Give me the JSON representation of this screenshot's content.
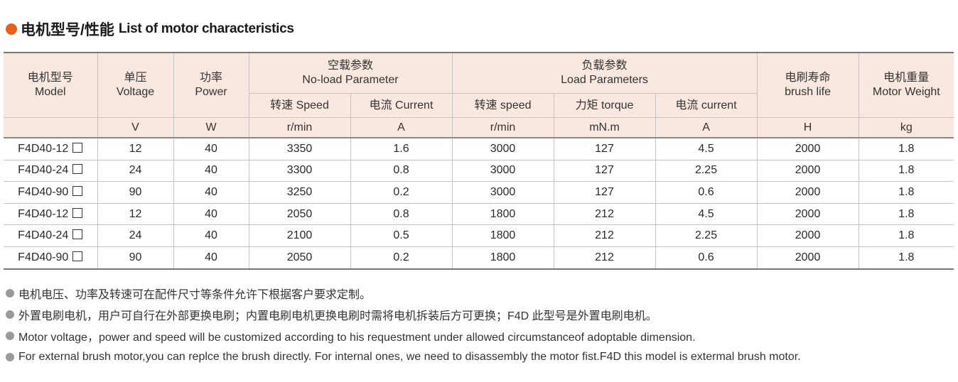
{
  "heading": {
    "cn": "电机型号/性能",
    "en": "List of motor characteristics"
  },
  "colors": {
    "accent": "#e8601c",
    "header_bg": "#f9e8df",
    "bullet": "#9a9a9a"
  },
  "table": {
    "model": [
      "电机型号",
      "Model"
    ],
    "voltage": [
      "单压",
      "Voltage"
    ],
    "power": [
      "功率",
      "Power"
    ],
    "noload": [
      "空载参数",
      "No-load Parameter"
    ],
    "load": [
      "负载参数",
      "Load Parameters"
    ],
    "brush": [
      "电刷寿命",
      "brush life"
    ],
    "weight": [
      "电机重量",
      "Motor Weight"
    ],
    "sub": [
      "转速 Speed",
      "电流 Current",
      "转速 speed",
      "力矩 torque",
      "电流 current"
    ],
    "units": [
      "V",
      "W",
      "r/min",
      "A",
      "r/min",
      "mN.m",
      "A",
      "H",
      "kg"
    ],
    "rows": [
      [
        "F4D40-12",
        "12",
        "40",
        "3350",
        "1.6",
        "3000",
        "127",
        "4.5",
        "2000",
        "1.8"
      ],
      [
        "F4D40-24",
        "24",
        "40",
        "3300",
        "0.8",
        "3000",
        "127",
        "2.25",
        "2000",
        "1.8"
      ],
      [
        "F4D40-90",
        "90",
        "40",
        "3250",
        "0.2",
        "3000",
        "127",
        "0.6",
        "2000",
        "1.8"
      ],
      [
        "F4D40-12",
        "12",
        "40",
        "2050",
        "0.8",
        "1800",
        "212",
        "4.5",
        "2000",
        "1.8"
      ],
      [
        "F4D40-24",
        "24",
        "40",
        "2100",
        "0.5",
        "1800",
        "212",
        "2.25",
        "2000",
        "1.8"
      ],
      [
        "F4D40-90",
        "90",
        "40",
        "2050",
        "0.2",
        "1800",
        "212",
        "0.6",
        "2000",
        "1.8"
      ]
    ]
  },
  "notes": [
    "电机电压、功率及转速可在配件尺寸等条件允许下根据客户要求定制。",
    "外置电刷电机，用户可自行在外部更换电刷；内置电刷电机更换电刷时需将电机拆装后方可更换；F4D 此型号是外置电刷电机。",
    "Motor voltage，power and speed will be customized according to his requestment under allowed circumstanceof adoptable dimension.",
    "For external brush motor,you can replce the brush directly. For internal ones, we need to disassembly the motor fist.F4D this model is extermal brush motor."
  ]
}
